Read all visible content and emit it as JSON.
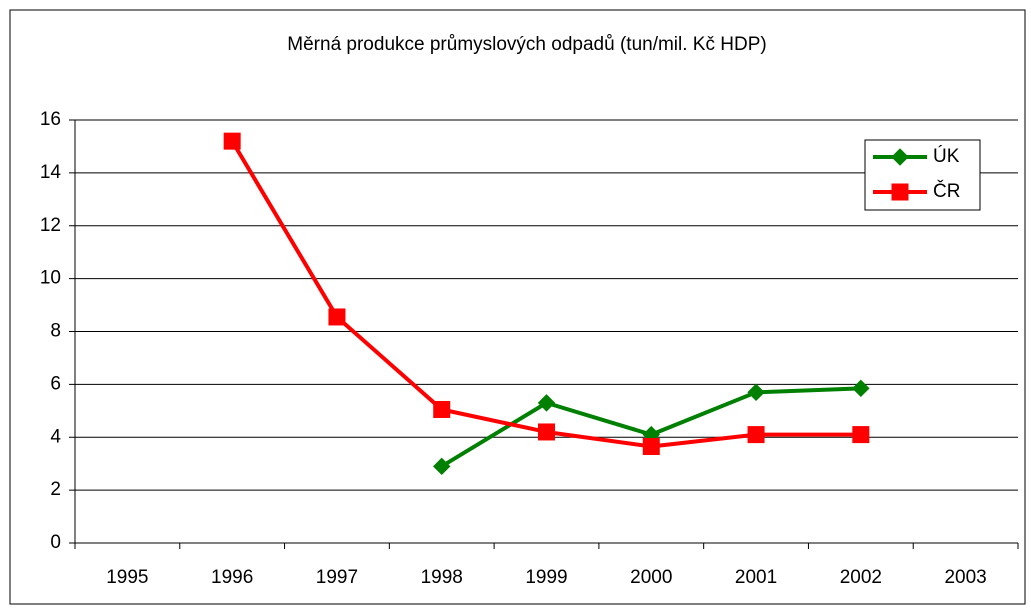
{
  "chart_data": {
    "type": "line",
    "title": "Měrná produkce průmyslových odpadů (tun/mil. Kč HDP)",
    "categories": [
      "1995",
      "1996",
      "1997",
      "1998",
      "1999",
      "2000",
      "2001",
      "2002",
      "2003"
    ],
    "series": [
      {
        "name": "ÚK",
        "color": "#008000",
        "marker": "diamond",
        "values": [
          null,
          null,
          null,
          2.9,
          5.3,
          4.1,
          5.7,
          5.85,
          null
        ]
      },
      {
        "name": "ČR",
        "color": "#ff0000",
        "marker": "square",
        "values": [
          null,
          15.2,
          8.55,
          5.05,
          4.2,
          3.65,
          4.1,
          4.1,
          null
        ]
      }
    ],
    "ylim": [
      0,
      16
    ],
    "yticks": [
      0,
      2,
      4,
      6,
      8,
      10,
      12,
      14,
      16
    ],
    "grid": true,
    "legend": "upper right"
  }
}
